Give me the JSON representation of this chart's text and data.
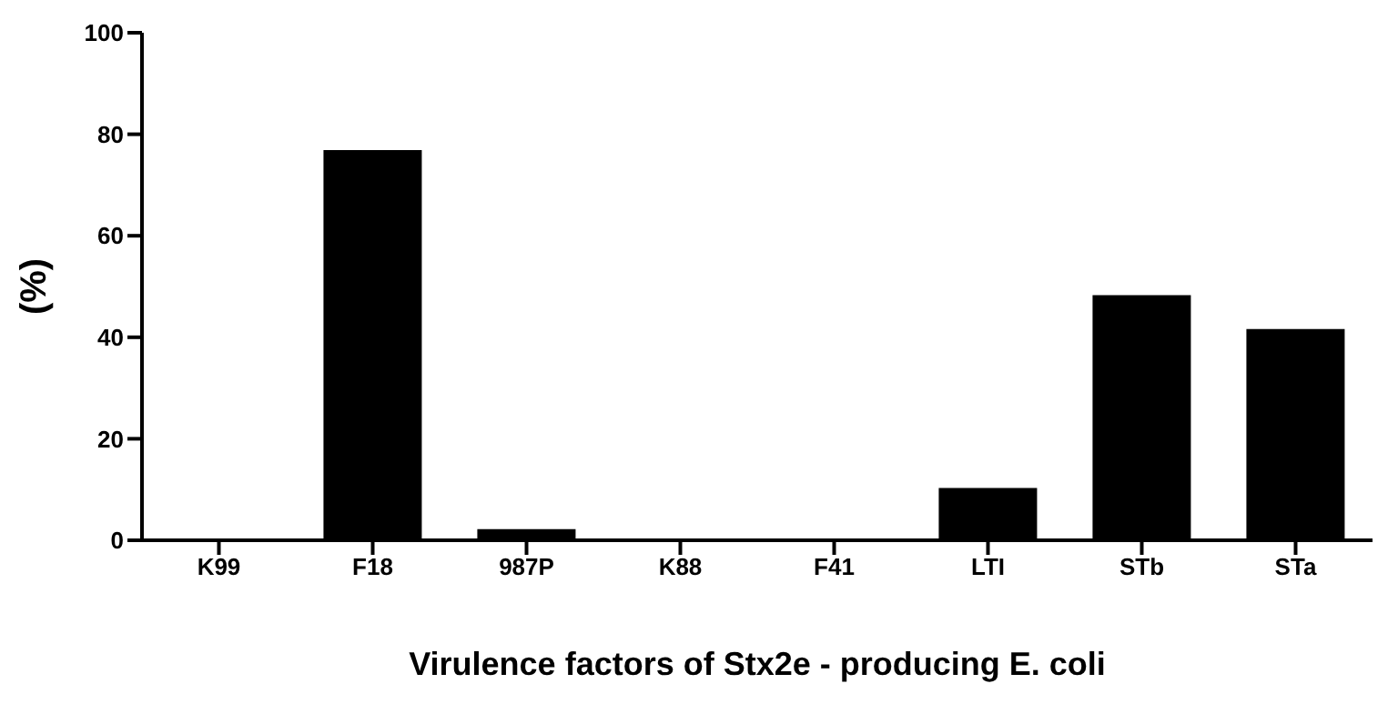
{
  "chart_data": {
    "type": "bar",
    "xlabel": "Virulence factors of Stx2e - producing E. coli",
    "ylabel": "(%)",
    "categories": [
      "K99",
      "F18",
      "987P",
      "K88",
      "F41",
      "LTI",
      "STb",
      "STa"
    ],
    "values": [
      0,
      76.9,
      2.2,
      0,
      0,
      10.3,
      48.3,
      41.6
    ],
    "color": "#000000",
    "ylim": [
      0,
      100
    ],
    "yticks": [
      0,
      20,
      40,
      60,
      80,
      100
    ],
    "grid": false
  }
}
